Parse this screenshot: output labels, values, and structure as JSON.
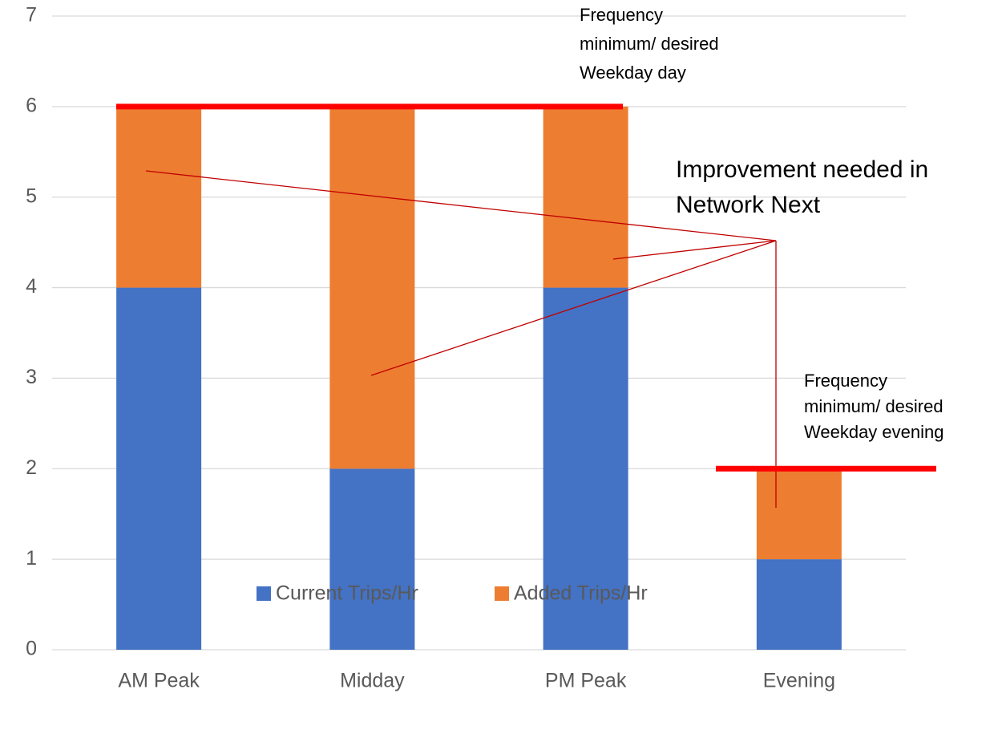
{
  "chart_data": {
    "type": "bar",
    "stacked": true,
    "categories": [
      "AM Peak",
      "Midday",
      "PM Peak",
      "Evening"
    ],
    "series": [
      {
        "name": "Current Trips/Hr",
        "color": "#4472c4",
        "values": [
          4,
          2,
          4,
          1
        ]
      },
      {
        "name": "Added Trips/Hr",
        "color": "#ed7d31",
        "values": [
          2,
          4,
          2,
          1
        ]
      }
    ],
    "ylim": [
      0,
      7
    ],
    "yticks": [
      0,
      1,
      2,
      3,
      4,
      5,
      6,
      7
    ],
    "grid": true,
    "legend": "bottom",
    "reference_lines": [
      {
        "value": 6,
        "color": "#ff0000",
        "lines": [
          "Frequency",
          "minimum/ desired",
          "Weekday day"
        ]
      },
      {
        "value": 2,
        "color": "#ff0000",
        "lines": [
          "Frequency",
          "minimum/ desired",
          "Weekday evening"
        ]
      }
    ],
    "annotation": [
      "Improvement needed in",
      "Network Next"
    ]
  }
}
